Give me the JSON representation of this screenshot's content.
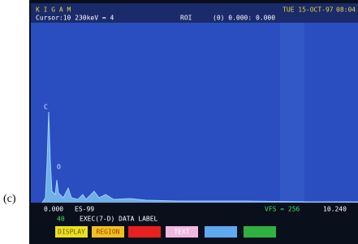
{
  "figure_label": "(c)",
  "header": {
    "brand": "K I G A M",
    "cursor": "Cursor:10 230keV = 4",
    "roi": "ROI",
    "roi_value": "(0) 0.000: 0.000",
    "date": "TUE 15-OCT-97",
    "time": "08:04"
  },
  "plot": {
    "marker_1": "C",
    "marker_2": "O"
  },
  "footer": {
    "x_start": "0.000",
    "spectrum_name": "ES-99",
    "vfs": "VFS = 256",
    "x_end": "10.240",
    "count": "40",
    "command": "EXEC(7-D) DATA LABEL"
  },
  "buttons": [
    "DISPLAY",
    "REGION",
    "TEXT"
  ]
}
